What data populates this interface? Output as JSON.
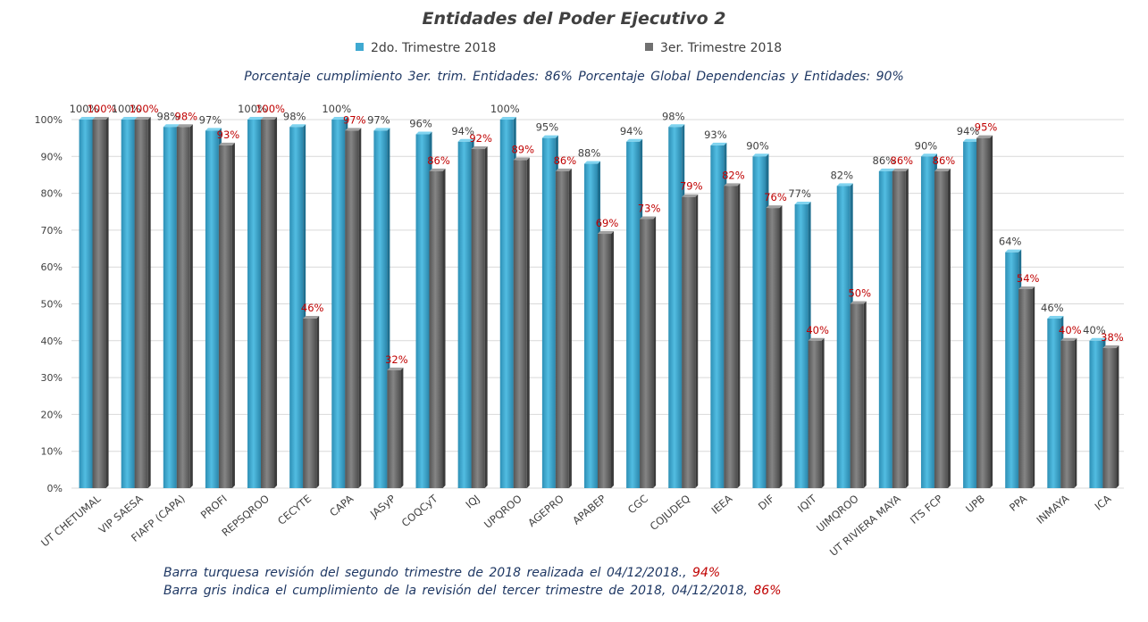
{
  "title": "Entidades del Poder Ejecutivo 2",
  "legend": {
    "series1": "2do. Trimestre 2018",
    "series2": "3er. Trimestre 2018"
  },
  "summary_line": "Porcentaje cumplimiento 3er. trim. Entidades: 86%   Porcentaje Global Dependencias y Entidades: 90%",
  "footnotes": {
    "line1_text": "Barra turquesa revisión del segundo trimestre de 2018 realizada el 04/12/2018.,",
    "line1_value": "94%",
    "line2_text": "Barra gris indica el cumplimiento de la revisión del tercer trimestre de 2018, 04/12/2018,",
    "line2_value": "86%"
  },
  "colors": {
    "series1": "#3fa9d1",
    "series2": "#707070",
    "series2_label": "#c00000",
    "series1_label": "#404040",
    "grid": "#d9d9d9",
    "text": "#404040",
    "note": "#1f3864"
  },
  "chart_data": {
    "type": "bar",
    "title": "Entidades del Poder Ejecutivo 2",
    "xlabel": "",
    "ylabel": "",
    "ylim": [
      0,
      100
    ],
    "yticks": [
      "0%",
      "10%",
      "20%",
      "30%",
      "40%",
      "50%",
      "60%",
      "70%",
      "80%",
      "90%",
      "100%"
    ],
    "grid": true,
    "legend_position": "top",
    "categories": [
      "UT CHETUMAL",
      "VIP SAESA",
      "FIAFP (CAPA)",
      "PROFI",
      "REPSQROO",
      "CECYTE",
      "CAPA",
      "JASyP",
      "COQCyT",
      "IQJ",
      "UPQROO",
      "AGEPRO",
      "APABEP",
      "CGC",
      "COJUDEQ",
      "IEEA",
      "DIF",
      "IQIT",
      "UIMQROO",
      "UT RIVIERA MAYA",
      "ITS FCP",
      "UPB",
      "PPA",
      "INMAYA",
      "ICA"
    ],
    "series": [
      {
        "name": "2do. Trimestre 2018",
        "values": [
          100,
          100,
          98,
          97,
          100,
          98,
          100,
          97,
          96,
          94,
          100,
          95,
          88,
          94,
          98,
          93,
          90,
          77,
          82,
          86,
          90,
          94,
          64,
          46,
          40
        ],
        "labels": [
          "100%",
          "100%",
          "98%",
          "97%",
          "100%",
          "98%",
          "100%",
          "97%",
          "96%",
          "94%",
          "100%",
          "95%",
          "88%",
          "94%",
          "98%",
          "93%",
          "90%",
          "77%",
          "82%",
          "86%",
          "90%",
          "94%",
          "64%",
          "46%",
          "40%"
        ]
      },
      {
        "name": "3er. Trimestre 2018",
        "values": [
          100,
          100,
          98,
          93,
          100,
          46,
          97,
          32,
          86,
          92,
          89,
          86,
          69,
          73,
          79,
          82,
          76,
          40,
          50,
          86,
          86,
          95,
          54,
          40,
          38
        ],
        "labels": [
          "100%",
          "100%",
          "98%",
          "93%",
          "100%",
          "46%",
          "97%",
          "32%",
          "86%",
          "92%",
          "89%",
          "86%",
          "69%",
          "73%",
          "79%",
          "82%",
          "76%",
          "40%",
          "50%",
          "86%",
          "86%",
          "95%",
          "54%",
          "40%",
          "38%"
        ]
      }
    ]
  }
}
